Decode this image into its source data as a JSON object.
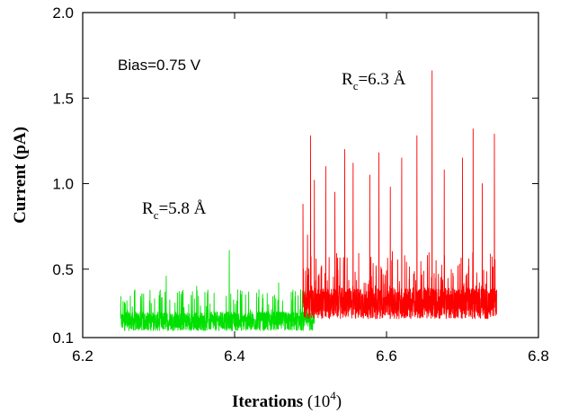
{
  "chart_data": {
    "type": "line",
    "title": "",
    "xlabel": "Iterations",
    "xlabel_unit_base": "10",
    "xlabel_unit_exp": "4",
    "ylabel": "Current (pA)",
    "xlim": [
      6.2,
      6.8
    ],
    "ylim": [
      0.1,
      2.0
    ],
    "xticks": [
      6.2,
      6.4,
      6.6,
      6.8
    ],
    "xtick_labels": [
      "6.2",
      "6.4",
      "6.6",
      "6.8"
    ],
    "yticks": [
      0.1,
      0.5,
      1.0,
      1.5,
      2.0
    ],
    "ytick_labels": [
      "0.1",
      "0.5",
      "1.0",
      "1.5",
      "2.0"
    ],
    "grid": false,
    "annotations": {
      "bias": "Bias=0.75 V",
      "rc_low": {
        "base": "R",
        "sub": "c",
        "rest": "=5.8 Å"
      },
      "rc_high": {
        "base": "R",
        "sub": "c",
        "rest": "=6.3 Å"
      }
    },
    "series": [
      {
        "color": "#00e000",
        "x_range": [
          6.25,
          6.505
        ],
        "baseline": [
          0.14,
          0.25
        ],
        "peaks": [
          {
            "x": 6.256,
            "y": 0.3
          },
          {
            "x": 6.31,
            "y": 0.46
          },
          {
            "x": 6.327,
            "y": 0.37
          },
          {
            "x": 6.35,
            "y": 0.4
          },
          {
            "x": 6.373,
            "y": 0.36
          },
          {
            "x": 6.393,
            "y": 0.61
          },
          {
            "x": 6.404,
            "y": 0.38
          },
          {
            "x": 6.432,
            "y": 0.38
          },
          {
            "x": 6.458,
            "y": 0.42
          },
          {
            "x": 6.487,
            "y": 0.38
          },
          {
            "x": 6.503,
            "y": 0.29
          }
        ]
      },
      {
        "color": "#ff0000",
        "x_range": [
          6.49,
          6.745
        ],
        "baseline": [
          0.21,
          0.39
        ],
        "peaks": [
          {
            "x": 6.49,
            "y": 0.88
          },
          {
            "x": 6.496,
            "y": 0.7
          },
          {
            "x": 6.5,
            "y": 1.28
          },
          {
            "x": 6.505,
            "y": 1.02
          },
          {
            "x": 6.52,
            "y": 1.1
          },
          {
            "x": 6.532,
            "y": 0.95
          },
          {
            "x": 6.545,
            "y": 1.2
          },
          {
            "x": 6.556,
            "y": 1.12
          },
          {
            "x": 6.578,
            "y": 1.05
          },
          {
            "x": 6.59,
            "y": 1.18
          },
          {
            "x": 6.605,
            "y": 0.98
          },
          {
            "x": 6.62,
            "y": 1.15
          },
          {
            "x": 6.64,
            "y": 1.28
          },
          {
            "x": 6.66,
            "y": 1.66
          },
          {
            "x": 6.676,
            "y": 1.08
          },
          {
            "x": 6.7,
            "y": 1.15
          },
          {
            "x": 6.714,
            "y": 1.32
          },
          {
            "x": 6.726,
            "y": 1.0
          },
          {
            "x": 6.742,
            "y": 1.29
          }
        ]
      }
    ]
  }
}
